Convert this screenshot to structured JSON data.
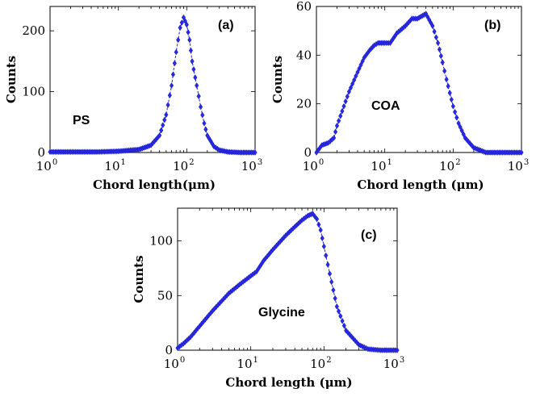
{
  "chart_data": [
    {
      "type": "line",
      "panel_label": "(a)",
      "annotation": "PS",
      "xlabel": "Chord length(μm)",
      "ylabel": "Counts",
      "xscale": "log",
      "xlim": [
        1,
        1000
      ],
      "ylim": [
        0,
        240
      ],
      "xticks": [
        1,
        10,
        100,
        1000
      ],
      "xtick_labels": [
        "10",
        "10",
        "10",
        "10"
      ],
      "xtick_exponents": [
        "0",
        "1",
        "2",
        "3"
      ],
      "yticks": [
        0,
        100,
        200
      ],
      "ytick_labels": [
        "0",
        "100",
        "200"
      ],
      "series": [
        {
          "name": "PS",
          "marker": "diamond",
          "x": [
            1,
            2,
            5,
            10,
            20,
            30,
            40,
            50,
            60,
            70,
            80,
            90,
            100,
            110,
            120,
            140,
            160,
            180,
            200,
            250,
            300,
            400,
            600,
            1000
          ],
          "y": [
            1,
            1,
            1,
            2,
            5,
            12,
            28,
            62,
            110,
            165,
            205,
            222,
            210,
            185,
            150,
            110,
            75,
            48,
            28,
            10,
            4,
            1,
            0,
            0
          ]
        }
      ]
    },
    {
      "type": "line",
      "panel_label": "(b)",
      "annotation": "COA",
      "xlabel": "Chord length (μm)",
      "ylabel": "Counts",
      "xscale": "log",
      "xlim": [
        1,
        1000
      ],
      "ylim": [
        0,
        60
      ],
      "xticks": [
        1,
        10,
        100,
        1000
      ],
      "xtick_labels": [
        "10",
        "10",
        "10",
        "10"
      ],
      "xtick_exponents": [
        "0",
        "1",
        "2",
        "3"
      ],
      "yticks": [
        0,
        20,
        40,
        60
      ],
      "ytick_labels": [
        "0",
        "20",
        "40",
        "60"
      ],
      "series": [
        {
          "name": "COA",
          "marker": "diamond",
          "x": [
            1,
            1.2,
            1.5,
            1.8,
            2,
            3,
            4,
            5,
            6,
            7,
            8,
            10,
            12,
            15,
            20,
            25,
            30,
            40,
            50,
            60,
            70,
            80,
            100,
            120,
            150,
            200,
            300,
            500,
            1000
          ],
          "y": [
            0,
            3,
            4,
            6,
            11,
            25,
            33,
            39,
            42,
            44,
            45,
            45,
            45,
            49,
            52,
            55,
            55,
            57,
            52,
            45,
            37,
            30,
            19,
            12,
            6,
            2,
            0,
            0,
            0
          ]
        }
      ]
    },
    {
      "type": "line",
      "panel_label": "(c)",
      "annotation": "Glycine",
      "xlabel": "Chord length (μm)",
      "ylabel": "Counts",
      "xscale": "log",
      "xlim": [
        1,
        1000
      ],
      "ylim": [
        0,
        130
      ],
      "xticks": [
        1,
        10,
        100,
        1000
      ],
      "xtick_labels": [
        "10",
        "10",
        "10",
        "10"
      ],
      "xtick_exponents": [
        "0",
        "1",
        "2",
        "3"
      ],
      "yticks": [
        0,
        50,
        100
      ],
      "ytick_labels": [
        "0",
        "50",
        "100"
      ],
      "series": [
        {
          "name": "Glycine",
          "marker": "diamond",
          "x": [
            1,
            1.2,
            1.5,
            2,
            3,
            4,
            5,
            7,
            10,
            12,
            15,
            20,
            30,
            40,
            50,
            60,
            70,
            80,
            90,
            100,
            120,
            150,
            200,
            300,
            400,
            600,
            1000
          ],
          "y": [
            2,
            6,
            12,
            22,
            36,
            45,
            52,
            60,
            68,
            72,
            82,
            92,
            105,
            113,
            119,
            123,
            125,
            120,
            110,
            95,
            70,
            40,
            18,
            5,
            1,
            0,
            0
          ]
        }
      ]
    }
  ]
}
